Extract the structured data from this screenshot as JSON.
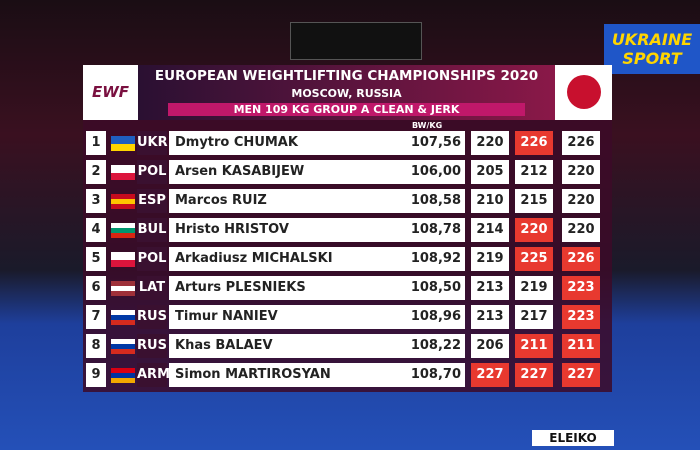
{
  "header": {
    "title": "EUROPEAN WEIGHTLIFTING CHAMPIONSHIPS 2020",
    "location": "MOSCOW, RUSSIA",
    "group": "MEN 109 KG GROUP A CLEAN & JERK",
    "bw_label": "BW/KG"
  },
  "logos": {
    "federation": "EWF",
    "channel_line1": "UKRAINE",
    "channel_line2": "SPORT",
    "sponsor": "ELEIKO"
  },
  "table": {
    "rows": [
      {
        "rank": 1,
        "code": "UKR",
        "flag": [
          "#1f5fbf",
          "#ffd500"
        ],
        "name": "Dmytro CHUMAK",
        "bodyweight": "107,56",
        "attempts": [
          220,
          226,
          226
        ],
        "attempt_colors": [
          "#ffffff",
          "#e8392f",
          "#ffffff"
        ]
      },
      {
        "rank": 2,
        "code": "POL",
        "flag": [
          "#ffffff",
          "#dc143c"
        ],
        "name": "Arsen KASABIJEW",
        "bodyweight": "106,00",
        "attempts": [
          205,
          212,
          220
        ],
        "attempt_colors": [
          "#ffffff",
          "#ffffff",
          "#ffffff"
        ]
      },
      {
        "rank": 3,
        "code": "ESP",
        "flag": [
          "#c60b1e",
          "#ffc400",
          "#c60b1e"
        ],
        "name": "Marcos RUIZ",
        "bodyweight": "108,58",
        "attempts": [
          210,
          215,
          220
        ],
        "attempt_colors": [
          "#ffffff",
          "#ffffff",
          "#ffffff"
        ]
      },
      {
        "rank": 4,
        "code": "BUL",
        "flag": [
          "#ffffff",
          "#00966e",
          "#d62612"
        ],
        "name": "Hristo HRISTOV",
        "bodyweight": "108,78",
        "attempts": [
          214,
          220,
          220
        ],
        "attempt_colors": [
          "#ffffff",
          "#e8392f",
          "#ffffff"
        ]
      },
      {
        "rank": 5,
        "code": "POL",
        "flag": [
          "#ffffff",
          "#dc143c"
        ],
        "name": "Arkadiusz MICHALSKI",
        "bodyweight": "108,92",
        "attempts": [
          219,
          225,
          226
        ],
        "attempt_colors": [
          "#ffffff",
          "#e8392f",
          "#e8392f"
        ]
      },
      {
        "rank": 6,
        "code": "LAT",
        "flag": [
          "#9e3039",
          "#ffffff",
          "#9e3039"
        ],
        "name": "Arturs PLESNIEKS",
        "bodyweight": "108,50",
        "attempts": [
          213,
          219,
          223
        ],
        "attempt_colors": [
          "#ffffff",
          "#ffffff",
          "#e8392f"
        ]
      },
      {
        "rank": 7,
        "code": "RUS",
        "flag": [
          "#ffffff",
          "#0039a6",
          "#d52b1e"
        ],
        "name": "Timur NANIEV",
        "bodyweight": "108,96",
        "attempts": [
          213,
          217,
          223
        ],
        "attempt_colors": [
          "#ffffff",
          "#ffffff",
          "#e8392f"
        ]
      },
      {
        "rank": 8,
        "code": "RUS",
        "flag": [
          "#ffffff",
          "#0039a6",
          "#d52b1e"
        ],
        "name": "Khas BALAEV",
        "bodyweight": "108,22",
        "attempts": [
          206,
          211,
          211
        ],
        "attempt_colors": [
          "#ffffff",
          "#e8392f",
          "#e8392f"
        ]
      },
      {
        "rank": 9,
        "code": "ARM",
        "flag": [
          "#d90012",
          "#0033a0",
          "#f2a800"
        ],
        "name": "Simon MARTIROSYAN",
        "bodyweight": "108,70",
        "attempts": [
          227,
          227,
          227
        ],
        "attempt_colors": [
          "#e8392f",
          "#e8392f",
          "#e8392f"
        ]
      }
    ]
  }
}
